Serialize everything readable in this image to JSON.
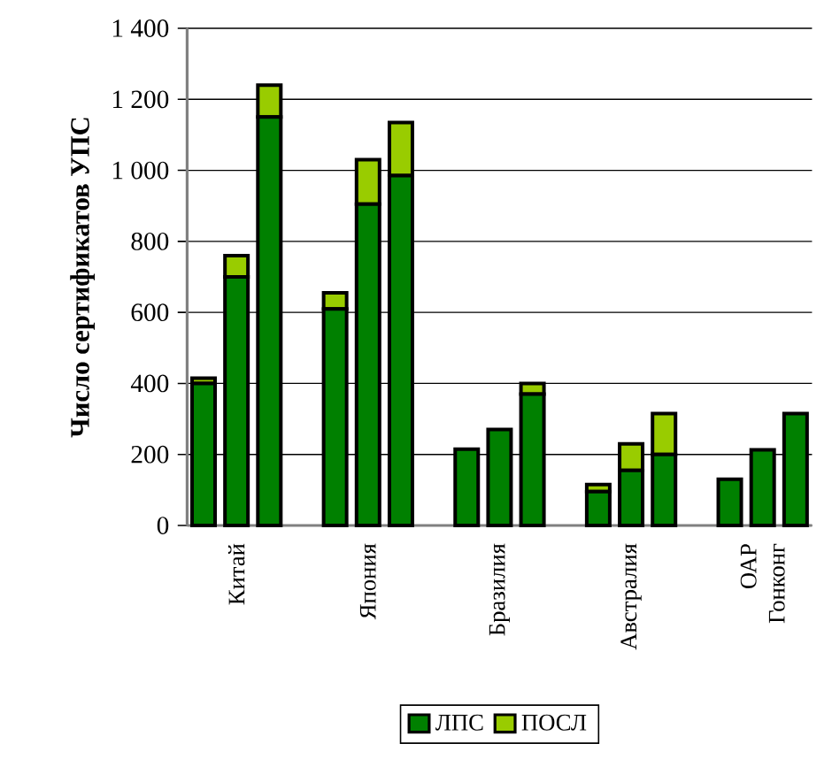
{
  "chart_data": {
    "type": "bar",
    "stacked": true,
    "ylabel": "Число сертификатов УПС",
    "categories": [
      null,
      "Китай",
      null,
      null,
      null,
      "Япония",
      null,
      null,
      null,
      "Бразилия",
      null,
      null,
      null,
      "Австралия",
      null,
      null,
      null,
      "ОАР Гонконг",
      null
    ],
    "series": [
      {
        "name": "ЛПС",
        "color": "#008000",
        "values": [
          400,
          700,
          1150,
          null,
          610,
          905,
          985,
          null,
          215,
          270,
          370,
          null,
          95,
          155,
          200,
          null,
          130,
          213,
          315
        ]
      },
      {
        "name": "ПОСЛ",
        "color": "#99cc00",
        "values": [
          15,
          60,
          90,
          null,
          45,
          125,
          150,
          null,
          null,
          null,
          30,
          null,
          20,
          75,
          115,
          null,
          null,
          null,
          null
        ]
      }
    ],
    "ylim": [
      0,
      1400
    ],
    "yticks": [
      0,
      200,
      400,
      600,
      800,
      {
        "value": 1000,
        "label": "1 000"
      },
      {
        "value": 1200,
        "label": "1 200"
      },
      {
        "value": 1400,
        "label": "1 400"
      }
    ],
    "grid": "y",
    "legend": "bottom"
  }
}
